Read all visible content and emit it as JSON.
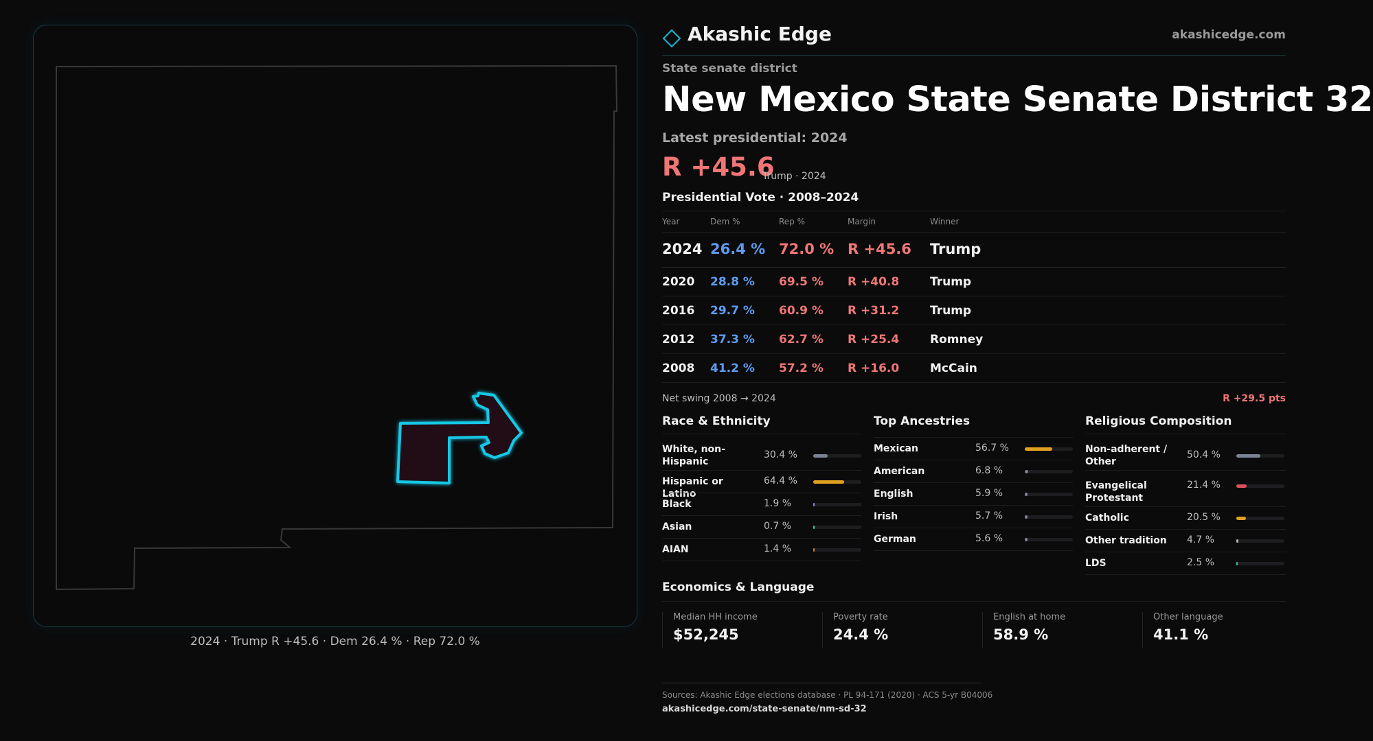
{
  "map": {
    "caption": "2024 · Trump R +45.6 · Dem 26.4 % · Rep 72.0 %",
    "outline_color": "#3a3a3d",
    "district_color": "#16c8e6"
  },
  "brand": {
    "name": "Akashic Edge",
    "url": "akashicedge.com",
    "logo_icon": "diamond-icon",
    "accent": "#16b8d8"
  },
  "header": {
    "kicker": "State senate district",
    "title": "New Mexico State Senate District 32",
    "latest_label": "Latest presidential: 2024",
    "margin": "R +45.6",
    "margin_sub": "Trump · 2024"
  },
  "vote_table": {
    "title": "Presidential Vote · 2008–2024",
    "headers": {
      "year": "Year",
      "dem": "Dem %",
      "rep": "Rep %",
      "margin": "Margin",
      "winner": "Winner"
    },
    "rows": [
      {
        "year": "2024",
        "dem": "26.4 %",
        "rep": "72.0 %",
        "margin": "R +45.6",
        "winner": "Trump"
      },
      {
        "year": "2020",
        "dem": "28.8 %",
        "rep": "69.5 %",
        "margin": "R +40.8",
        "winner": "Trump"
      },
      {
        "year": "2016",
        "dem": "29.7 %",
        "rep": "60.9 %",
        "margin": "R +31.2",
        "winner": "Trump"
      },
      {
        "year": "2012",
        "dem": "37.3 %",
        "rep": "62.7 %",
        "margin": "R +25.4",
        "winner": "Romney"
      },
      {
        "year": "2008",
        "dem": "41.2 %",
        "rep": "57.2 %",
        "margin": "R +16.0",
        "winner": "McCain"
      }
    ],
    "colors": {
      "dem": "#5e9cf0",
      "rep": "#f07676"
    }
  },
  "swing": {
    "label": "Net swing 2008 → 2024",
    "value": "R +29.5 pts"
  },
  "race": {
    "title": "Race & Ethnicity",
    "rows": [
      {
        "label": "White, non-Hispanic",
        "value": "30.4 %",
        "share": 0.304,
        "color": "#7b8294"
      },
      {
        "label": "Hispanic or Latino",
        "value": "64.4 %",
        "share": 0.644,
        "color": "#e0a020"
      },
      {
        "label": "Black",
        "value": "1.9 %",
        "share": 0.019,
        "color": "#9a7be0"
      },
      {
        "label": "Asian",
        "value": "0.7 %",
        "share": 0.007,
        "color": "#3ec8a0"
      },
      {
        "label": "AIAN",
        "value": "1.4 %",
        "share": 0.014,
        "color": "#e07a30"
      }
    ]
  },
  "ancestry": {
    "title": "Top Ancestries",
    "rows": [
      {
        "label": "Mexican",
        "value": "56.7 %",
        "share": 0.567,
        "color": "#e0a020"
      },
      {
        "label": "American",
        "value": "6.8 %",
        "share": 0.068,
        "color": "#7b8294"
      },
      {
        "label": "English",
        "value": "5.9 %",
        "share": 0.059,
        "color": "#7b8294"
      },
      {
        "label": "Irish",
        "value": "5.7 %",
        "share": 0.057,
        "color": "#7b8294"
      },
      {
        "label": "German",
        "value": "5.6 %",
        "share": 0.056,
        "color": "#7b8294"
      }
    ]
  },
  "religion": {
    "title": "Religious Composition",
    "rows": [
      {
        "label": "Non-adherent / Other",
        "value": "50.4 %",
        "share": 0.504,
        "color": "#7b8294"
      },
      {
        "label": "Evangelical Protestant",
        "value": "21.4 %",
        "share": 0.214,
        "color": "#e0505a"
      },
      {
        "label": "Catholic",
        "value": "20.5 %",
        "share": 0.205,
        "color": "#e0a020"
      },
      {
        "label": "Other tradition",
        "value": "4.7 %",
        "share": 0.047,
        "color": "#b0b0b0"
      },
      {
        "label": "LDS",
        "value": "2.5 %",
        "share": 0.025,
        "color": "#3ec8a0"
      }
    ]
  },
  "economics": {
    "title": "Economics & Language",
    "cells": [
      {
        "label": "Median HH income",
        "value": "$52,245"
      },
      {
        "label": "Poverty rate",
        "value": "24.4 %"
      },
      {
        "label": "English at home",
        "value": "58.9 %"
      },
      {
        "label": "Other language",
        "value": "41.1 %"
      }
    ]
  },
  "footer": {
    "sources": "Sources: Akashic Edge elections database · PL 94-171 (2020) · ACS 5-yr B04006",
    "url": "akashicedge.com/state-senate/nm-sd-32"
  }
}
